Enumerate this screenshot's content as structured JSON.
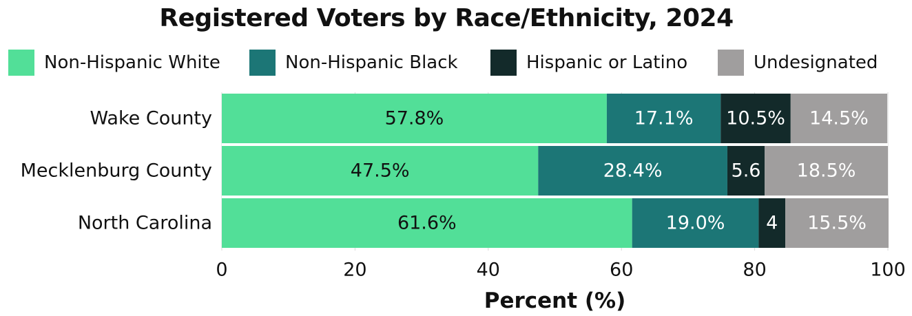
{
  "chart_data": {
    "type": "bar",
    "orientation": "horizontal",
    "stacked": true,
    "title": "Registered Voters by Race/Ethnicity, 2024",
    "xlabel": "Percent (%)",
    "ylabel": "",
    "xlim": [
      0,
      100
    ],
    "xticks": [
      "0",
      "20",
      "40",
      "60",
      "80",
      "100"
    ],
    "grid": "vertical",
    "legend_position": "top",
    "categories": [
      "Wake County",
      "Mecklenburg County",
      "North Carolina"
    ],
    "series": [
      {
        "name": "Non-Hispanic White",
        "color": "#52df98",
        "values": [
          57.8,
          47.5,
          61.6
        ],
        "labels": [
          "57.8%",
          "47.5%",
          "61.6%"
        ],
        "label_color": "#111111"
      },
      {
        "name": "Non-Hispanic Black",
        "color": "#1c7676",
        "values": [
          17.1,
          28.4,
          19.0
        ],
        "labels": [
          "17.1%",
          "28.4%",
          "19.0%"
        ],
        "label_color": "#ffffff"
      },
      {
        "name": "Hispanic or Latino",
        "color": "#132a2a",
        "values": [
          10.5,
          5.6,
          4.0
        ],
        "labels": [
          "10.5%",
          "5.6",
          "4"
        ],
        "label_color": "#ffffff"
      },
      {
        "name": "Undesignated",
        "color": "#a09e9e",
        "values": [
          14.5,
          18.5,
          15.5
        ],
        "labels": [
          "14.5%",
          "18.5%",
          "15.5%"
        ],
        "label_color": "#ffffff"
      }
    ]
  }
}
